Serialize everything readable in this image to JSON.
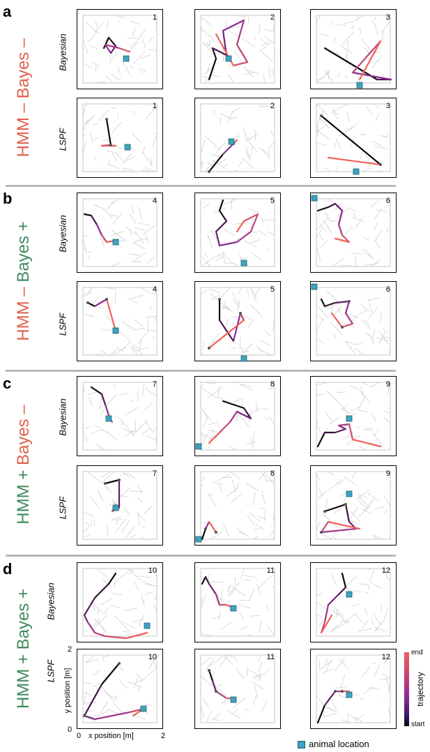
{
  "sections": [
    {
      "letter": "a",
      "label_parts": [
        {
          "text": "HMM – ",
          "color": "#e0604c"
        },
        {
          "text": "Bayes –",
          "color": "#e0604c"
        }
      ]
    },
    {
      "letter": "b",
      "label_parts": [
        {
          "text": "HMM – ",
          "color": "#e0604c"
        },
        {
          "text": "Bayes +",
          "color": "#3f8a5c"
        }
      ]
    },
    {
      "letter": "c",
      "label_parts": [
        {
          "text": "HMM + ",
          "color": "#3f8a5c"
        },
        {
          "text": "Bayes –",
          "color": "#e0604c"
        }
      ]
    },
    {
      "letter": "d",
      "label_parts": [
        {
          "text": "HMM + ",
          "color": "#3f8a5c"
        },
        {
          "text": "Bayes +",
          "color": "#3f8a5c"
        }
      ]
    }
  ],
  "row_labels": {
    "bayesian": "Bayesian",
    "lspf": "LSPF"
  },
  "panels": [
    {
      "id": "a-b-1",
      "num": "1"
    },
    {
      "id": "a-b-2",
      "num": "2"
    },
    {
      "id": "a-b-3",
      "num": "3"
    },
    {
      "id": "a-l-1",
      "num": "1"
    },
    {
      "id": "a-l-2",
      "num": "2"
    },
    {
      "id": "a-l-3",
      "num": "3"
    },
    {
      "id": "b-b-4",
      "num": "4"
    },
    {
      "id": "b-b-5",
      "num": "5"
    },
    {
      "id": "b-b-6",
      "num": "6"
    },
    {
      "id": "b-l-4",
      "num": "4"
    },
    {
      "id": "b-l-5",
      "num": "5"
    },
    {
      "id": "b-l-6",
      "num": "6"
    },
    {
      "id": "c-b-7",
      "num": "7"
    },
    {
      "id": "c-b-8",
      "num": "8"
    },
    {
      "id": "c-b-9",
      "num": "9"
    },
    {
      "id": "c-l-7",
      "num": "7"
    },
    {
      "id": "c-l-8",
      "num": "8"
    },
    {
      "id": "c-l-9",
      "num": "9"
    },
    {
      "id": "d-b-10",
      "num": "10"
    },
    {
      "id": "d-b-11",
      "num": "11"
    },
    {
      "id": "d-b-12",
      "num": "12"
    },
    {
      "id": "d-l-10",
      "num": "10"
    },
    {
      "id": "d-l-11",
      "num": "11"
    },
    {
      "id": "d-l-12",
      "num": "12"
    }
  ],
  "axes": {
    "xlabel": "x position [m]",
    "ylabel": "y position [m]",
    "x_ticks": [
      "0",
      "2"
    ],
    "y_ticks": [
      "2",
      "0"
    ]
  },
  "colorbar": {
    "label": "trajectory",
    "top": "end",
    "bottom": "start"
  },
  "legend": {
    "label": "animal location"
  },
  "colors": {
    "end": "#f0605a",
    "mid": "#8b2a93",
    "start": "#0a0a0a",
    "marker": "#3fa3bf",
    "divider": "#b8b8b8",
    "maze": "#d0d0d0",
    "bayes_minus": "#e0604c",
    "bayes_plus": "#3f8a5c"
  }
}
